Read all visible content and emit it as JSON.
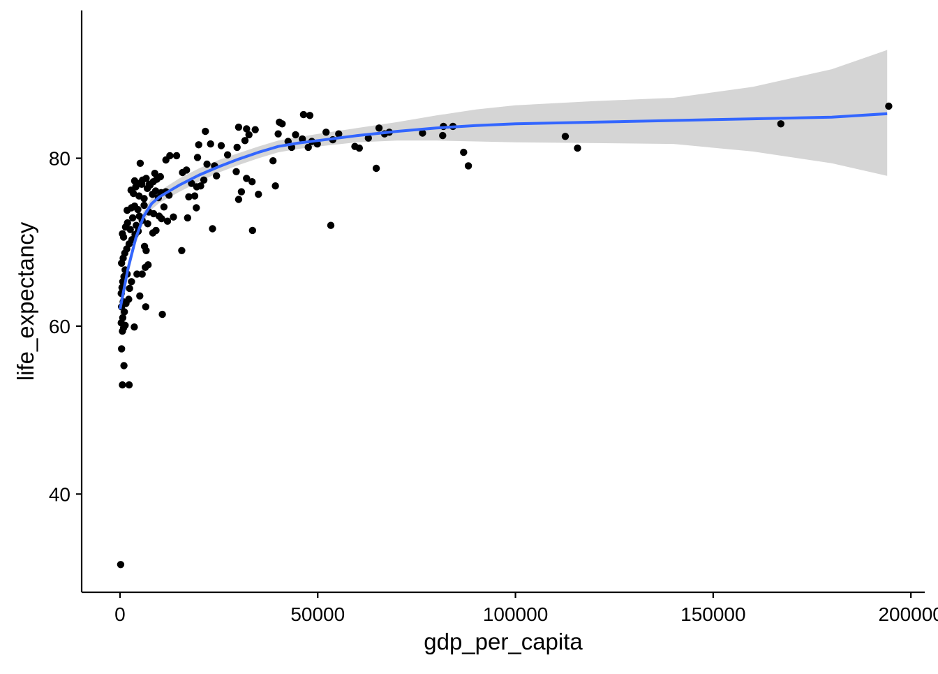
{
  "chart_data": {
    "type": "scatter",
    "title": "",
    "xlabel": "gdp_per_capita",
    "ylabel": "life_expectancy",
    "xlim": [
      -9700,
      203500
    ],
    "ylim": [
      28.3,
      97.6
    ],
    "x_ticks": [
      0,
      50000,
      100000,
      150000,
      200000
    ],
    "x_tick_labels": [
      "0",
      "50000",
      "100000",
      "150000",
      "200000"
    ],
    "y_ticks": [
      40,
      60,
      80
    ],
    "y_tick_labels": [
      "40",
      "60",
      "80"
    ],
    "grid": false,
    "legend": "none",
    "colors": {
      "points": "#000000",
      "smooth_line": "#3366FF",
      "confidence_band": "#D3D3D3",
      "axis": "#000000"
    },
    "points": [
      [
        170,
        31.6
      ],
      [
        600,
        53.0
      ],
      [
        2300,
        53.0
      ],
      [
        1000,
        55.3
      ],
      [
        400,
        57.3
      ],
      [
        600,
        59.4
      ],
      [
        900,
        59.8
      ],
      [
        1300,
        60.1
      ],
      [
        3600,
        59.9
      ],
      [
        300,
        60.4
      ],
      [
        700,
        61.0
      ],
      [
        1100,
        61.7
      ],
      [
        400,
        62.3
      ],
      [
        800,
        62.9
      ],
      [
        1500,
        62.7
      ],
      [
        2200,
        63.2
      ],
      [
        5000,
        63.6
      ],
      [
        6500,
        62.3
      ],
      [
        10700,
        61.4
      ],
      [
        300,
        63.9
      ],
      [
        500,
        64.6
      ],
      [
        700,
        65.3
      ],
      [
        1000,
        65.9
      ],
      [
        1300,
        66.7
      ],
      [
        1800,
        66.2
      ],
      [
        2400,
        64.5
      ],
      [
        2900,
        65.3
      ],
      [
        4300,
        66.2
      ],
      [
        5600,
        66.2
      ],
      [
        6400,
        67.0
      ],
      [
        7100,
        67.3
      ],
      [
        400,
        67.5
      ],
      [
        800,
        68.1
      ],
      [
        1200,
        68.7
      ],
      [
        1700,
        69.2
      ],
      [
        2300,
        69.8
      ],
      [
        3000,
        70.3
      ],
      [
        3800,
        70.9
      ],
      [
        4600,
        71.3
      ],
      [
        6200,
        69.5
      ],
      [
        6600,
        69.0
      ],
      [
        15600,
        69.0
      ],
      [
        600,
        71.0
      ],
      [
        900,
        70.6
      ],
      [
        1400,
        71.8
      ],
      [
        1900,
        72.3
      ],
      [
        2600,
        71.5
      ],
      [
        3200,
        72.9
      ],
      [
        4100,
        72.0
      ],
      [
        4900,
        73.1
      ],
      [
        5600,
        72.6
      ],
      [
        7000,
        72.2
      ],
      [
        8300,
        71.1
      ],
      [
        9100,
        71.4
      ],
      [
        10500,
        72.8
      ],
      [
        12000,
        72.5
      ],
      [
        23400,
        71.6
      ],
      [
        33500,
        71.4
      ],
      [
        53300,
        72.0
      ],
      [
        1800,
        73.8
      ],
      [
        2900,
        74.1
      ],
      [
        3700,
        74.3
      ],
      [
        4500,
        73.9
      ],
      [
        6100,
        74.4
      ],
      [
        7300,
        73.6
      ],
      [
        8500,
        73.4
      ],
      [
        9900,
        73.1
      ],
      [
        11100,
        74.2
      ],
      [
        13500,
        73.0
      ],
      [
        17100,
        72.9
      ],
      [
        19300,
        74.1
      ],
      [
        2800,
        76.2
      ],
      [
        3400,
        75.8
      ],
      [
        4000,
        76.6
      ],
      [
        4800,
        75.5
      ],
      [
        5500,
        76.9
      ],
      [
        6100,
        75.2
      ],
      [
        6900,
        76.4
      ],
      [
        7600,
        76.8
      ],
      [
        8200,
        75.7
      ],
      [
        9000,
        76.1
      ],
      [
        9700,
        75.3
      ],
      [
        10400,
        75.9
      ],
      [
        11600,
        76.0
      ],
      [
        12400,
        75.6
      ],
      [
        3700,
        77.3
      ],
      [
        4500,
        77.0
      ],
      [
        5700,
        77.4
      ],
      [
        6600,
        77.6
      ],
      [
        7400,
        76.9
      ],
      [
        8400,
        77.2
      ],
      [
        9300,
        77.5
      ],
      [
        10200,
        77.8
      ],
      [
        8800,
        78.2
      ],
      [
        5100,
        79.4
      ],
      [
        11600,
        79.8
      ],
      [
        12600,
        80.3
      ],
      [
        14300,
        80.3
      ],
      [
        15800,
        78.3
      ],
      [
        16800,
        78.6
      ],
      [
        17400,
        75.4
      ],
      [
        18900,
        75.5
      ],
      [
        18100,
        77.0
      ],
      [
        19400,
        76.6
      ],
      [
        20400,
        76.7
      ],
      [
        19600,
        80.1
      ],
      [
        21200,
        77.4
      ],
      [
        22000,
        79.3
      ],
      [
        23900,
        79.1
      ],
      [
        24400,
        77.9
      ],
      [
        19900,
        81.6
      ],
      [
        21600,
        83.2
      ],
      [
        22900,
        81.7
      ],
      [
        25600,
        81.5
      ],
      [
        27200,
        80.4
      ],
      [
        29400,
        78.4
      ],
      [
        30000,
        75.1
      ],
      [
        30700,
        76.0
      ],
      [
        32000,
        77.6
      ],
      [
        33400,
        77.2
      ],
      [
        35000,
        75.7
      ],
      [
        29600,
        81.3
      ],
      [
        31600,
        82.1
      ],
      [
        32600,
        82.8
      ],
      [
        30000,
        83.7
      ],
      [
        32000,
        83.5
      ],
      [
        34200,
        83.4
      ],
      [
        38700,
        79.7
      ],
      [
        39300,
        76.7
      ],
      [
        40000,
        82.9
      ],
      [
        40300,
        84.3
      ],
      [
        41000,
        84.1
      ],
      [
        42500,
        82.0
      ],
      [
        43400,
        81.3
      ],
      [
        44400,
        82.8
      ],
      [
        46100,
        82.3
      ],
      [
        47600,
        81.3
      ],
      [
        48500,
        82.0
      ],
      [
        49900,
        81.7
      ],
      [
        46400,
        85.2
      ],
      [
        48000,
        85.1
      ],
      [
        52100,
        83.1
      ],
      [
        53800,
        82.2
      ],
      [
        55300,
        82.9
      ],
      [
        59400,
        81.4
      ],
      [
        60500,
        81.2
      ],
      [
        62800,
        82.4
      ],
      [
        64800,
        78.8
      ],
      [
        65500,
        83.6
      ],
      [
        66900,
        82.9
      ],
      [
        68100,
        83.1
      ],
      [
        76500,
        83.0
      ],
      [
        81600,
        82.7
      ],
      [
        81800,
        83.8
      ],
      [
        84200,
        83.8
      ],
      [
        86900,
        80.7
      ],
      [
        88100,
        79.1
      ],
      [
        112600,
        82.6
      ],
      [
        115700,
        81.2
      ],
      [
        167100,
        84.1
      ],
      [
        194400,
        86.2
      ]
    ],
    "smooth_fit": [
      [
        0,
        62.0
      ],
      [
        2000,
        66.8
      ],
      [
        4000,
        70.5
      ],
      [
        6000,
        73.1
      ],
      [
        8000,
        74.6
      ],
      [
        10000,
        75.4
      ],
      [
        15000,
        76.8
      ],
      [
        20000,
        78.0
      ],
      [
        25000,
        79.0
      ],
      [
        30000,
        79.9
      ],
      [
        35000,
        80.7
      ],
      [
        40000,
        81.4
      ],
      [
        45000,
        81.8
      ],
      [
        50000,
        82.1
      ],
      [
        60000,
        82.7
      ],
      [
        70000,
        83.2
      ],
      [
        80000,
        83.6
      ],
      [
        90000,
        83.9
      ],
      [
        100000,
        84.1
      ],
      [
        120000,
        84.3
      ],
      [
        140000,
        84.5
      ],
      [
        160000,
        84.7
      ],
      [
        180000,
        84.9
      ],
      [
        194000,
        85.3
      ]
    ],
    "confidence_band": [
      [
        0,
        60.5,
        63.3
      ],
      [
        2000,
        66.0,
        67.6
      ],
      [
        4000,
        69.8,
        71.2
      ],
      [
        6000,
        72.4,
        73.8
      ],
      [
        8000,
        73.9,
        75.3
      ],
      [
        10000,
        74.7,
        76.1
      ],
      [
        15000,
        76.0,
        77.6
      ],
      [
        20000,
        77.2,
        78.8
      ],
      [
        25000,
        78.3,
        79.8
      ],
      [
        30000,
        79.2,
        80.6
      ],
      [
        35000,
        80.0,
        81.4
      ],
      [
        40000,
        80.7,
        82.1
      ],
      [
        45000,
        81.1,
        82.5
      ],
      [
        50000,
        81.4,
        82.9
      ],
      [
        60000,
        81.9,
        83.6
      ],
      [
        70000,
        82.1,
        84.3
      ],
      [
        80000,
        82.1,
        85.1
      ],
      [
        90000,
        82.0,
        85.8
      ],
      [
        100000,
        81.9,
        86.3
      ],
      [
        120000,
        81.8,
        86.8
      ],
      [
        140000,
        81.7,
        87.2
      ],
      [
        160000,
        80.8,
        88.5
      ],
      [
        180000,
        79.4,
        90.6
      ],
      [
        194000,
        77.9,
        92.9
      ]
    ]
  }
}
